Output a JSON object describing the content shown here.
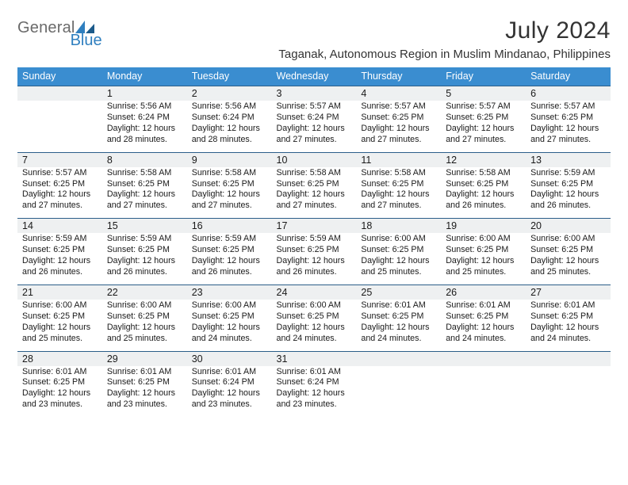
{
  "branding": {
    "logo_word1": "General",
    "logo_word2": "Blue",
    "logo_word1_color": "#6a6a6a",
    "logo_word2_color": "#2f7fbf",
    "sail_color": "#2f7fbf"
  },
  "header": {
    "title": "July 2024",
    "subtitle": "Taganak, Autonomous Region in Muslim Mindanao, Philippines"
  },
  "styles": {
    "dow_bg": "#3a8dd0",
    "dow_fg": "#ffffff",
    "daynum_bg": "#eef0f1",
    "daynum_border": "#2b5e89",
    "text_color": "#1a1a1a",
    "page_bg": "#ffffff",
    "title_fontsize": 30,
    "subtitle_fontsize": 15,
    "dow_fontsize": 12.5,
    "daynum_fontsize": 12.5,
    "body_fontsize": 10.7
  },
  "calendar": {
    "days_of_week": [
      "Sunday",
      "Monday",
      "Tuesday",
      "Wednesday",
      "Thursday",
      "Friday",
      "Saturday"
    ],
    "weeks": [
      [
        null,
        {
          "n": "1",
          "sunrise": "Sunrise: 5:56 AM",
          "sunset": "Sunset: 6:24 PM",
          "day1": "Daylight: 12 hours",
          "day2": "and 28 minutes."
        },
        {
          "n": "2",
          "sunrise": "Sunrise: 5:56 AM",
          "sunset": "Sunset: 6:24 PM",
          "day1": "Daylight: 12 hours",
          "day2": "and 28 minutes."
        },
        {
          "n": "3",
          "sunrise": "Sunrise: 5:57 AM",
          "sunset": "Sunset: 6:24 PM",
          "day1": "Daylight: 12 hours",
          "day2": "and 27 minutes."
        },
        {
          "n": "4",
          "sunrise": "Sunrise: 5:57 AM",
          "sunset": "Sunset: 6:25 PM",
          "day1": "Daylight: 12 hours",
          "day2": "and 27 minutes."
        },
        {
          "n": "5",
          "sunrise": "Sunrise: 5:57 AM",
          "sunset": "Sunset: 6:25 PM",
          "day1": "Daylight: 12 hours",
          "day2": "and 27 minutes."
        },
        {
          "n": "6",
          "sunrise": "Sunrise: 5:57 AM",
          "sunset": "Sunset: 6:25 PM",
          "day1": "Daylight: 12 hours",
          "day2": "and 27 minutes."
        }
      ],
      [
        {
          "n": "7",
          "sunrise": "Sunrise: 5:57 AM",
          "sunset": "Sunset: 6:25 PM",
          "day1": "Daylight: 12 hours",
          "day2": "and 27 minutes."
        },
        {
          "n": "8",
          "sunrise": "Sunrise: 5:58 AM",
          "sunset": "Sunset: 6:25 PM",
          "day1": "Daylight: 12 hours",
          "day2": "and 27 minutes."
        },
        {
          "n": "9",
          "sunrise": "Sunrise: 5:58 AM",
          "sunset": "Sunset: 6:25 PM",
          "day1": "Daylight: 12 hours",
          "day2": "and 27 minutes."
        },
        {
          "n": "10",
          "sunrise": "Sunrise: 5:58 AM",
          "sunset": "Sunset: 6:25 PM",
          "day1": "Daylight: 12 hours",
          "day2": "and 27 minutes."
        },
        {
          "n": "11",
          "sunrise": "Sunrise: 5:58 AM",
          "sunset": "Sunset: 6:25 PM",
          "day1": "Daylight: 12 hours",
          "day2": "and 27 minutes."
        },
        {
          "n": "12",
          "sunrise": "Sunrise: 5:58 AM",
          "sunset": "Sunset: 6:25 PM",
          "day1": "Daylight: 12 hours",
          "day2": "and 26 minutes."
        },
        {
          "n": "13",
          "sunrise": "Sunrise: 5:59 AM",
          "sunset": "Sunset: 6:25 PM",
          "day1": "Daylight: 12 hours",
          "day2": "and 26 minutes."
        }
      ],
      [
        {
          "n": "14",
          "sunrise": "Sunrise: 5:59 AM",
          "sunset": "Sunset: 6:25 PM",
          "day1": "Daylight: 12 hours",
          "day2": "and 26 minutes."
        },
        {
          "n": "15",
          "sunrise": "Sunrise: 5:59 AM",
          "sunset": "Sunset: 6:25 PM",
          "day1": "Daylight: 12 hours",
          "day2": "and 26 minutes."
        },
        {
          "n": "16",
          "sunrise": "Sunrise: 5:59 AM",
          "sunset": "Sunset: 6:25 PM",
          "day1": "Daylight: 12 hours",
          "day2": "and 26 minutes."
        },
        {
          "n": "17",
          "sunrise": "Sunrise: 5:59 AM",
          "sunset": "Sunset: 6:25 PM",
          "day1": "Daylight: 12 hours",
          "day2": "and 26 minutes."
        },
        {
          "n": "18",
          "sunrise": "Sunrise: 6:00 AM",
          "sunset": "Sunset: 6:25 PM",
          "day1": "Daylight: 12 hours",
          "day2": "and 25 minutes."
        },
        {
          "n": "19",
          "sunrise": "Sunrise: 6:00 AM",
          "sunset": "Sunset: 6:25 PM",
          "day1": "Daylight: 12 hours",
          "day2": "and 25 minutes."
        },
        {
          "n": "20",
          "sunrise": "Sunrise: 6:00 AM",
          "sunset": "Sunset: 6:25 PM",
          "day1": "Daylight: 12 hours",
          "day2": "and 25 minutes."
        }
      ],
      [
        {
          "n": "21",
          "sunrise": "Sunrise: 6:00 AM",
          "sunset": "Sunset: 6:25 PM",
          "day1": "Daylight: 12 hours",
          "day2": "and 25 minutes."
        },
        {
          "n": "22",
          "sunrise": "Sunrise: 6:00 AM",
          "sunset": "Sunset: 6:25 PM",
          "day1": "Daylight: 12 hours",
          "day2": "and 25 minutes."
        },
        {
          "n": "23",
          "sunrise": "Sunrise: 6:00 AM",
          "sunset": "Sunset: 6:25 PM",
          "day1": "Daylight: 12 hours",
          "day2": "and 24 minutes."
        },
        {
          "n": "24",
          "sunrise": "Sunrise: 6:00 AM",
          "sunset": "Sunset: 6:25 PM",
          "day1": "Daylight: 12 hours",
          "day2": "and 24 minutes."
        },
        {
          "n": "25",
          "sunrise": "Sunrise: 6:01 AM",
          "sunset": "Sunset: 6:25 PM",
          "day1": "Daylight: 12 hours",
          "day2": "and 24 minutes."
        },
        {
          "n": "26",
          "sunrise": "Sunrise: 6:01 AM",
          "sunset": "Sunset: 6:25 PM",
          "day1": "Daylight: 12 hours",
          "day2": "and 24 minutes."
        },
        {
          "n": "27",
          "sunrise": "Sunrise: 6:01 AM",
          "sunset": "Sunset: 6:25 PM",
          "day1": "Daylight: 12 hours",
          "day2": "and 24 minutes."
        }
      ],
      [
        {
          "n": "28",
          "sunrise": "Sunrise: 6:01 AM",
          "sunset": "Sunset: 6:25 PM",
          "day1": "Daylight: 12 hours",
          "day2": "and 23 minutes."
        },
        {
          "n": "29",
          "sunrise": "Sunrise: 6:01 AM",
          "sunset": "Sunset: 6:25 PM",
          "day1": "Daylight: 12 hours",
          "day2": "and 23 minutes."
        },
        {
          "n": "30",
          "sunrise": "Sunrise: 6:01 AM",
          "sunset": "Sunset: 6:24 PM",
          "day1": "Daylight: 12 hours",
          "day2": "and 23 minutes."
        },
        {
          "n": "31",
          "sunrise": "Sunrise: 6:01 AM",
          "sunset": "Sunset: 6:24 PM",
          "day1": "Daylight: 12 hours",
          "day2": "and 23 minutes."
        },
        null,
        null,
        null
      ]
    ]
  }
}
